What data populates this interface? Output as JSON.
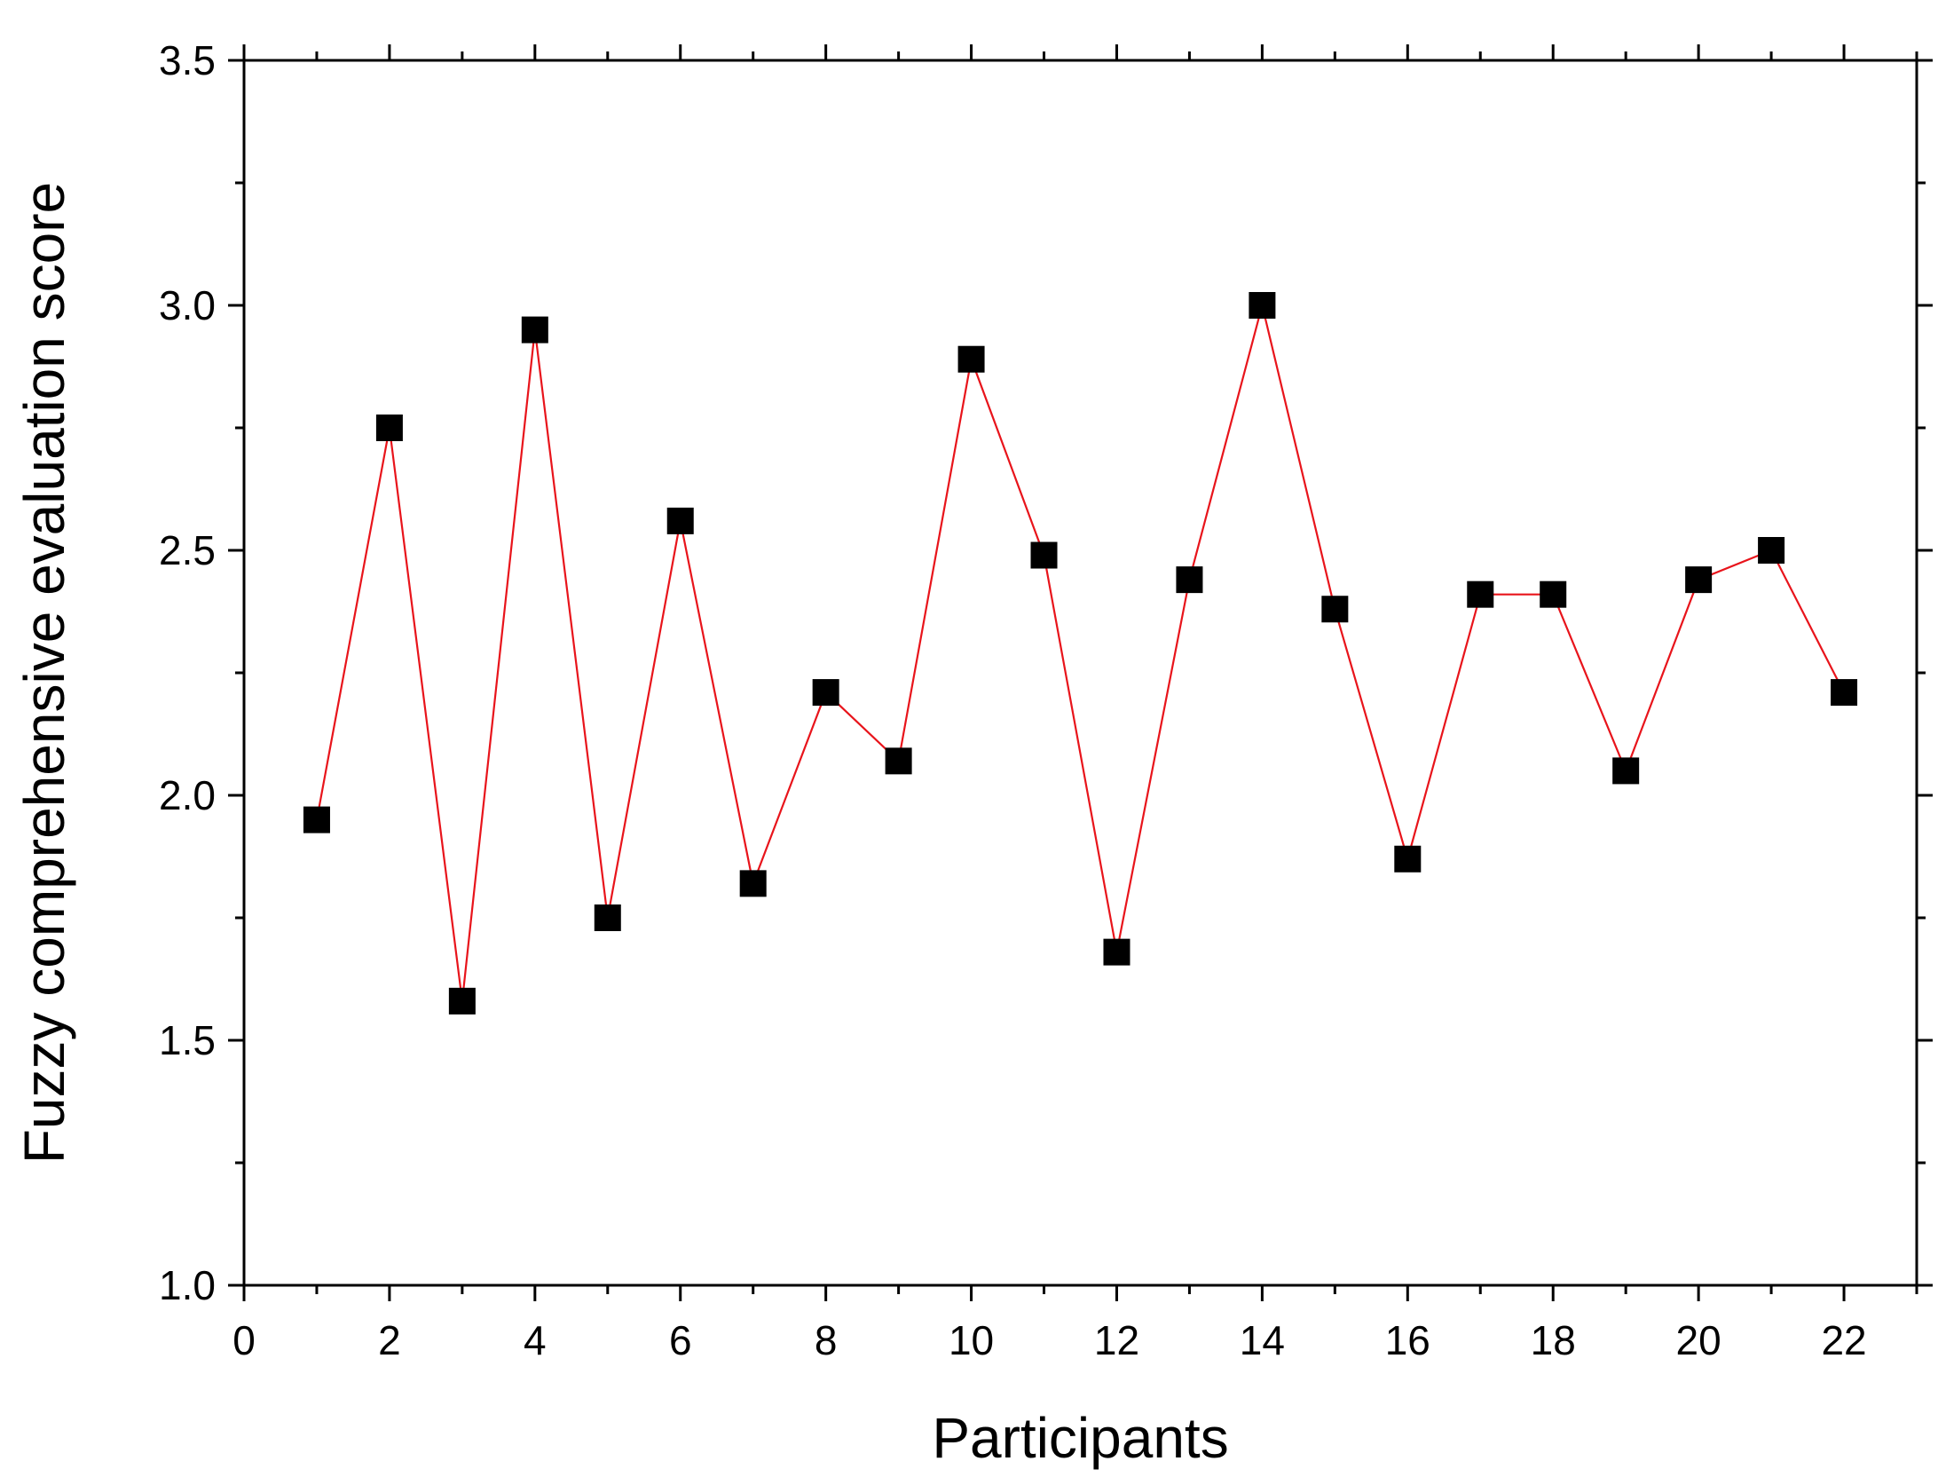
{
  "chart_data": {
    "type": "line",
    "title": "",
    "xlabel": "Participants",
    "ylabel": "Fuzzy comprehensive evaluation score",
    "xlim": [
      0,
      23
    ],
    "ylim": [
      1.0,
      3.5
    ],
    "x_ticks": [
      0,
      2,
      4,
      6,
      8,
      10,
      12,
      14,
      16,
      18,
      20,
      22
    ],
    "x_tick_labels": [
      "0",
      "2",
      "4",
      "6",
      "8",
      "10",
      "12",
      "14",
      "16",
      "18",
      "20",
      "22"
    ],
    "x_minor_ticks": [
      1,
      3,
      5,
      7,
      9,
      11,
      13,
      15,
      17,
      19,
      21,
      23
    ],
    "y_ticks": [
      1.0,
      1.5,
      2.0,
      2.5,
      3.0,
      3.5
    ],
    "y_tick_labels": [
      "1.0",
      "1.5",
      "2.0",
      "2.5",
      "3.0",
      "3.5"
    ],
    "y_minor_ticks": [
      1.25,
      1.75,
      2.25,
      2.75,
      3.25
    ],
    "grid": false,
    "legend": "none",
    "series": [
      {
        "name": "Fuzzy comprehensive evaluation score",
        "line_color": "#e8141b",
        "marker": "square",
        "marker_color": "#000000",
        "x": [
          1,
          2,
          3,
          4,
          5,
          6,
          7,
          8,
          9,
          10,
          11,
          12,
          13,
          14,
          15,
          16,
          17,
          18,
          19,
          20,
          21,
          22
        ],
        "values": [
          1.95,
          2.75,
          1.58,
          2.95,
          1.75,
          2.56,
          1.82,
          2.21,
          2.07,
          2.89,
          2.49,
          1.68,
          2.44,
          3.0,
          2.38,
          1.87,
          2.41,
          2.41,
          2.05,
          2.44,
          2.5,
          2.21
        ]
      }
    ]
  }
}
